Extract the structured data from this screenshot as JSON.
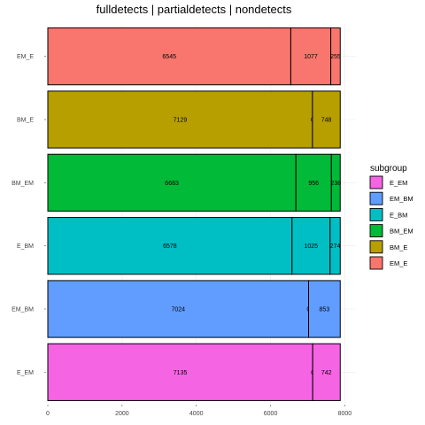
{
  "chart_data": {
    "type": "bar",
    "orientation": "horizontal",
    "stacked": true,
    "title": "fulldetects  |  partialdetects  |  nondetects",
    "categories": [
      "EM_E",
      "BM_E",
      "BM_EM",
      "E_BM",
      "EM_BM",
      "E_EM"
    ],
    "colors": {
      "EM_E": "#F8766D",
      "BM_E": "#B79F00",
      "BM_EM": "#00BA38",
      "E_BM": "#00BFC4",
      "EM_BM": "#619CFF",
      "E_EM": "#F564E3"
    },
    "series": [
      {
        "name": "fulldetects",
        "values": [
          6545,
          7129,
          6683,
          6578,
          7024,
          7135
        ]
      },
      {
        "name": "partialdetects",
        "values": [
          1077,
          0,
          956,
          1025,
          0,
          0
        ]
      },
      {
        "name": "nondetects",
        "values": [
          255,
          748,
          238,
          274,
          853,
          742
        ]
      }
    ],
    "xlim": [
      0,
      8000
    ],
    "xticks": [
      0,
      2000,
      4000,
      6000,
      8000
    ],
    "grid": true,
    "legend": {
      "title": "subgroup",
      "position": "right",
      "entries": [
        "E_EM",
        "EM_BM",
        "E_BM",
        "BM_EM",
        "BM_E",
        "EM_E"
      ]
    }
  }
}
